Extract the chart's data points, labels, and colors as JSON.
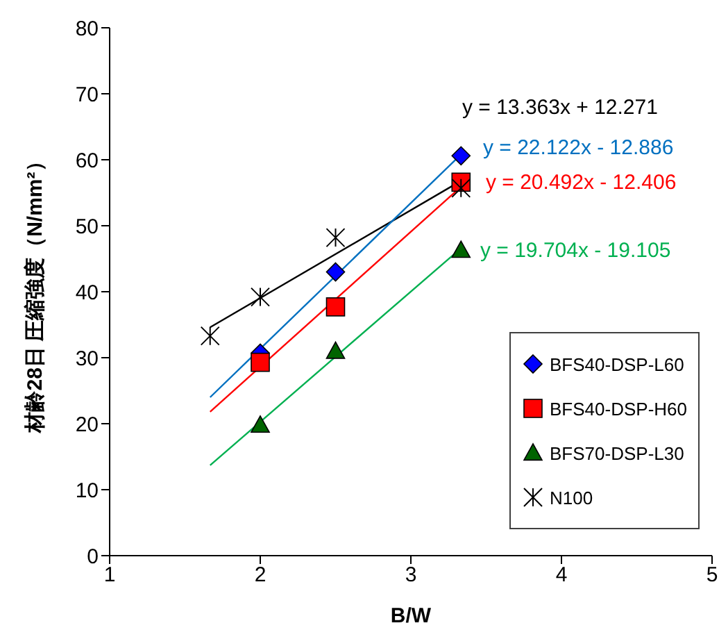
{
  "chart_data": {
    "type": "scatter",
    "xlabel": "B/W",
    "ylabel": "材齢28日  圧縮強度（N/mm²）",
    "xlim": [
      1,
      5
    ],
    "xticks": [
      1,
      2,
      3,
      4,
      5
    ],
    "ylim": [
      0,
      80
    ],
    "yticks": [
      0,
      10,
      20,
      30,
      40,
      50,
      60,
      70,
      80
    ],
    "grid": false,
    "legend": "bottom right",
    "series": [
      {
        "name": "BFS40-DSP-L60",
        "color": "#0000ff",
        "marker": "diamond",
        "x": [
          2,
          2.5,
          3.333
        ],
        "values": [
          30.7,
          43,
          60.6
        ]
      },
      {
        "name": "BFS40-DSP-H60",
        "color": "#ff0000",
        "marker": "square",
        "x": [
          2,
          2.5,
          3.333
        ],
        "values": [
          29.3,
          37.7,
          56.6
        ]
      },
      {
        "name": "BFS70-DSP-L30",
        "color": "#006400",
        "marker": "triangle",
        "x": [
          2,
          2.5,
          3.333
        ],
        "values": [
          19.8,
          31,
          46.3
        ]
      },
      {
        "name": "N100",
        "color": "#000000",
        "marker": "cross",
        "x": [
          1.667,
          2,
          2.5,
          3.333
        ],
        "values": [
          33.3,
          39.2,
          48.2,
          55.7
        ]
      },
      {
        "type": "line",
        "color": "#000000",
        "marker": "none",
        "x": [
          1.667,
          3.333
        ],
        "values": [
          34.6,
          56.8
        ]
      },
      {
        "type": "line",
        "color": "#0070c0",
        "marker": "none",
        "x": [
          1.667,
          3.333
        ],
        "values": [
          24.0,
          60.8
        ]
      },
      {
        "type": "line",
        "color": "#ff0000",
        "marker": "none",
        "x": [
          1.667,
          3.333
        ],
        "values": [
          21.8,
          55.9
        ]
      },
      {
        "type": "line",
        "color": "#00b050",
        "marker": "none",
        "x": [
          1.667,
          3.333
        ],
        "values": [
          13.7,
          46.6
        ]
      }
    ],
    "annotations": [
      "y = 13.363x + 12.271",
      "y = 22.122x - 12.886",
      "y = 20.492x - 12.406",
      "y = 19.704x - 19.105"
    ]
  }
}
